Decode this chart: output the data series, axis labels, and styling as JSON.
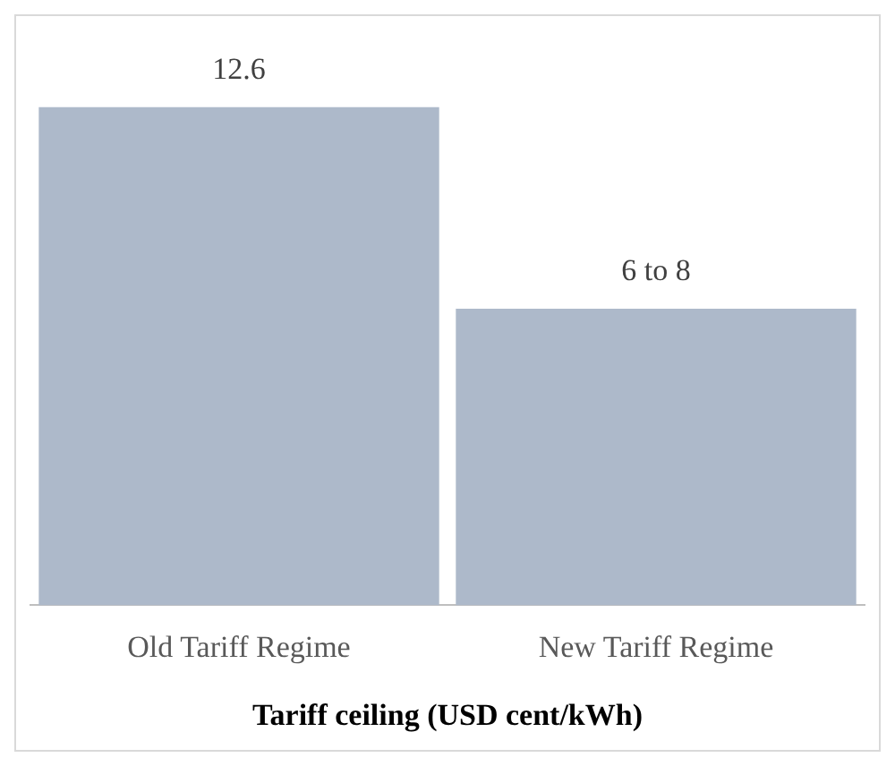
{
  "chart_data": {
    "type": "bar",
    "xlabel": "Tariff ceiling (USD cent/kWh)",
    "categories": [
      "Old Tariff Regime",
      "New Tariff Regime"
    ],
    "values": [
      12.6,
      7.5
    ],
    "color": "#adb9ca",
    "value_labels": [
      "12.6",
      "6 to 8"
    ],
    "tick_labels": "x",
    "grid": false,
    "legend": false
  }
}
